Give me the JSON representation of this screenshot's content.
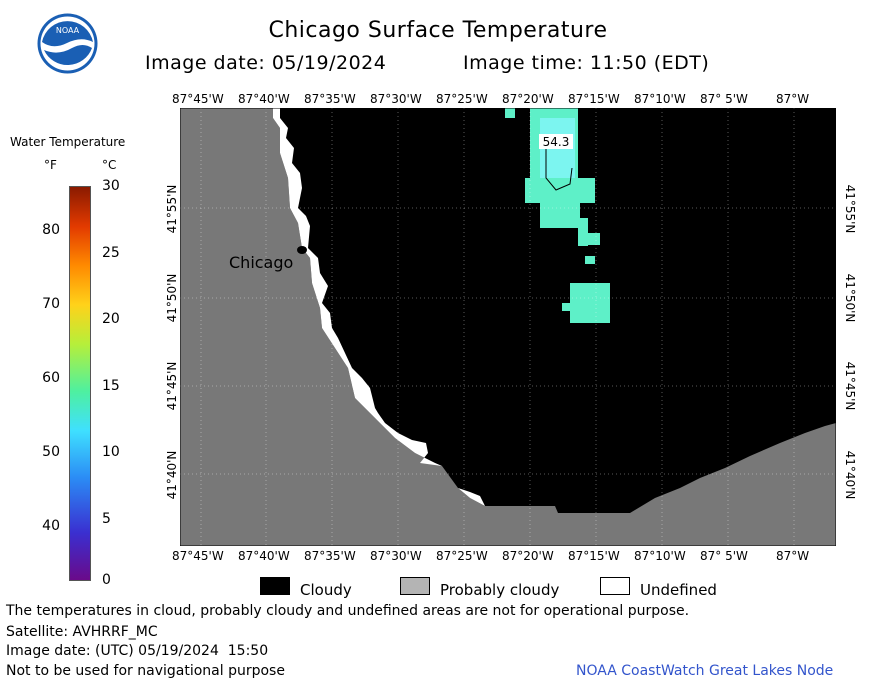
{
  "logo": {
    "text": "NOAA"
  },
  "header": {
    "title": "Chicago Surface Temperature",
    "image_date": "Image date: 05/19/2024",
    "image_time": "Image time: 11:50 (EDT)"
  },
  "map": {
    "lon_labels": [
      "87°45'W",
      "87°40'W",
      "87°35'W",
      "87°30'W",
      "87°25'W",
      "87°20'W",
      "87°15'W",
      "87°10'W",
      "87° 5'W",
      "87°W"
    ],
    "lat_labels": [
      "41°55'N",
      "41°50'N",
      "41°45'N",
      "41°40'N"
    ],
    "city_label": "Chicago",
    "temp_label": "54.3",
    "colors": {
      "land": "#787878",
      "cloud": "#000000",
      "undefined": "#ffffff",
      "water": "#5ef0c8"
    }
  },
  "colorbar": {
    "title": "Water Temperature",
    "f_unit": "°F",
    "c_unit": "°C",
    "f_ticks": [
      "80",
      "70",
      "60",
      "50",
      "40"
    ],
    "c_ticks": [
      "30",
      "25",
      "20",
      "15",
      "10",
      "5",
      "0"
    ]
  },
  "legend": {
    "cloudy": "Cloudy",
    "probably_cloudy": "Probably cloudy",
    "undefined": "Undefined",
    "colors": {
      "cloudy": "#000000",
      "probably_cloudy": "#b4b4b4",
      "undefined": "#ffffff"
    }
  },
  "footer": {
    "note": "The temperatures in cloud, probably cloudy and undefined areas are not for operational purpose.",
    "satellite": "Satellite: AVHRRF_MC",
    "utc_date": "Image date: (UTC) 05/19/2024  15:50",
    "nav_warning": "Not to be used for navigational purpose",
    "credit": "NOAA CoastWatch Great Lakes Node"
  }
}
